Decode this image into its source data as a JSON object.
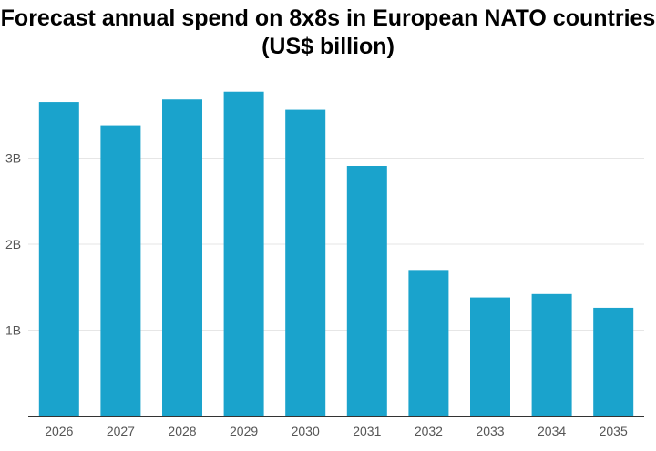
{
  "chart_data": {
    "type": "bar",
    "title": "Forecast annual spend on 8x8s in European NATO countries",
    "subtitle": "(US$ billion)",
    "categories": [
      "2026",
      "2027",
      "2028",
      "2029",
      "2030",
      "2031",
      "2032",
      "2033",
      "2034",
      "2035"
    ],
    "values": [
      3.65,
      3.38,
      3.68,
      3.77,
      3.56,
      2.91,
      1.7,
      1.38,
      1.42,
      1.26
    ],
    "ylim": [
      0,
      3.8
    ],
    "yticks": [
      1,
      2,
      3
    ],
    "ytick_labels": [
      "1B",
      "2B",
      "3B"
    ],
    "xlabel": "",
    "ylabel": "",
    "grid": true,
    "bar_color": "#1aa3cc"
  }
}
